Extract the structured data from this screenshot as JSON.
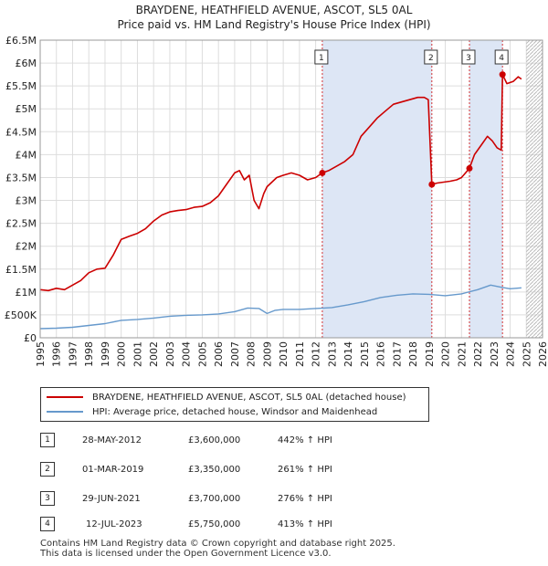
{
  "chart_data": {
    "type": "line",
    "title": "BRAYDENE, HEATHFIELD AVENUE, ASCOT, SL5 0AL",
    "subtitle": "Price paid vs. HM Land Registry's House Price Index (HPI)",
    "xlabel": "",
    "ylabel": "",
    "xlim": [
      1995,
      2026
    ],
    "ylim": [
      0,
      6500000
    ],
    "x_ticks": [
      "1995",
      "1996",
      "1997",
      "1998",
      "1999",
      "2000",
      "2001",
      "2002",
      "2003",
      "2004",
      "2005",
      "2006",
      "2007",
      "2008",
      "2009",
      "2010",
      "2011",
      "2012",
      "2013",
      "2014",
      "2015",
      "2016",
      "2017",
      "2018",
      "2019",
      "2020",
      "2021",
      "2022",
      "2023",
      "2024",
      "2025",
      "2026"
    ],
    "y_ticks": [
      {
        "value": 0,
        "label": "£0"
      },
      {
        "value": 500000,
        "label": "£500K"
      },
      {
        "value": 1000000,
        "label": "£1M"
      },
      {
        "value": 1500000,
        "label": "£1.5M"
      },
      {
        "value": 2000000,
        "label": "£2M"
      },
      {
        "value": 2500000,
        "label": "£2.5M"
      },
      {
        "value": 3000000,
        "label": "£3M"
      },
      {
        "value": 3500000,
        "label": "£3.5M"
      },
      {
        "value": 4000000,
        "label": "£4M"
      },
      {
        "value": 4500000,
        "label": "£4.5M"
      },
      {
        "value": 5000000,
        "label": "£5M"
      },
      {
        "value": 5500000,
        "label": "£5.5M"
      },
      {
        "value": 6000000,
        "label": "£6M"
      },
      {
        "value": 6500000,
        "label": "£6.5M"
      }
    ],
    "grid": true,
    "future_hatch_from": 2025.0,
    "shaded_spans": [
      [
        2012.41,
        2019.17
      ],
      [
        2021.49,
        2023.53
      ]
    ],
    "series": [
      {
        "name": "BRAYDENE, HEATHFIELD AVENUE, ASCOT, SL5 0AL (detached house)",
        "color": "#cc0000",
        "x": [
          1995.0,
          1995.5,
          1996.0,
          1996.5,
          1997.0,
          1997.5,
          1998.0,
          1998.5,
          1999.0,
          1999.5,
          2000.0,
          2000.5,
          2001.0,
          2001.5,
          2002.0,
          2002.5,
          2003.0,
          2003.5,
          2004.0,
          2004.5,
          2005.0,
          2005.5,
          2006.0,
          2006.5,
          2007.0,
          2007.3,
          2007.6,
          2007.9,
          2008.2,
          2008.5,
          2008.8,
          2009.0,
          2009.3,
          2009.6,
          2010.0,
          2010.5,
          2011.0,
          2011.5,
          2012.0,
          2012.41,
          2012.8,
          2013.3,
          2013.8,
          2014.3,
          2014.8,
          2015.3,
          2015.8,
          2016.3,
          2016.8,
          2017.3,
          2017.8,
          2018.3,
          2018.7,
          2018.95,
          2019.17,
          2019.5,
          2019.9,
          2020.3,
          2020.7,
          2021.0,
          2021.49,
          2021.8,
          2022.2,
          2022.6,
          2022.9,
          2023.2,
          2023.45,
          2023.53,
          2023.8,
          2024.2,
          2024.5,
          2024.7
        ],
        "values": [
          1050000,
          1030000,
          1080000,
          1050000,
          1150000,
          1250000,
          1420000,
          1500000,
          1520000,
          1800000,
          2150000,
          2220000,
          2280000,
          2380000,
          2550000,
          2680000,
          2750000,
          2780000,
          2800000,
          2850000,
          2870000,
          2950000,
          3100000,
          3350000,
          3600000,
          3650000,
          3450000,
          3550000,
          3000000,
          2820000,
          3150000,
          3300000,
          3400000,
          3500000,
          3550000,
          3600000,
          3550000,
          3450000,
          3500000,
          3600000,
          3650000,
          3750000,
          3850000,
          4000000,
          4400000,
          4600000,
          4800000,
          4950000,
          5100000,
          5150000,
          5200000,
          5250000,
          5250000,
          5200000,
          3350000,
          3380000,
          3400000,
          3420000,
          3450000,
          3500000,
          3700000,
          4000000,
          4200000,
          4400000,
          4300000,
          4150000,
          4100000,
          5750000,
          5550000,
          5600000,
          5700000,
          5650000
        ]
      },
      {
        "name": "HPI: Average price, detached house, Windsor and Maidenhead",
        "color": "#6699cc",
        "x": [
          1995.0,
          1996.0,
          1997.0,
          1998.0,
          1999.0,
          2000.0,
          2001.0,
          2002.0,
          2003.0,
          2004.0,
          2005.0,
          2006.0,
          2007.0,
          2007.8,
          2008.5,
          2009.0,
          2009.5,
          2010.0,
          2011.0,
          2012.0,
          2013.0,
          2014.0,
          2015.0,
          2016.0,
          2017.0,
          2018.0,
          2019.0,
          2020.0,
          2021.0,
          2022.0,
          2022.8,
          2023.5,
          2024.0,
          2024.7
        ],
        "values": [
          200000,
          210000,
          230000,
          270000,
          310000,
          380000,
          400000,
          430000,
          470000,
          490000,
          500000,
          520000,
          570000,
          650000,
          640000,
          530000,
          600000,
          620000,
          620000,
          640000,
          660000,
          720000,
          790000,
          880000,
          930000,
          960000,
          950000,
          920000,
          960000,
          1050000,
          1150000,
          1100000,
          1070000,
          1090000
        ]
      }
    ],
    "sales": [
      {
        "label": "1",
        "x": 2012.41,
        "value": 3600000
      },
      {
        "label": "2",
        "x": 2019.17,
        "value": 3350000
      },
      {
        "label": "3",
        "x": 2021.49,
        "value": 3700000
      },
      {
        "label": "4",
        "x": 2023.53,
        "value": 5750000
      }
    ]
  },
  "colors": {
    "property": "#cc0000",
    "hpi": "#6699cc",
    "shade": "#dde6f5",
    "grid": "#dddddd"
  },
  "legend": {
    "property": "BRAYDENE, HEATHFIELD AVENUE, ASCOT, SL5 0AL (detached house)",
    "hpi": "HPI: Average price, detached house, Windsor and Maidenhead"
  },
  "sales_table": [
    {
      "num": "1",
      "date": "28-MAY-2012",
      "price": "£3,600,000",
      "hpi": "442% ↑ HPI"
    },
    {
      "num": "2",
      "date": "01-MAR-2019",
      "price": "£3,350,000",
      "hpi": "261% ↑ HPI"
    },
    {
      "num": "3",
      "date": "29-JUN-2021",
      "price": "£3,700,000",
      "hpi": "276% ↑ HPI"
    },
    {
      "num": "4",
      "date": "12-JUL-2023",
      "price": "£5,750,000",
      "hpi": "413% ↑ HPI"
    }
  ],
  "footer": {
    "line1": "Contains HM Land Registry data © Crown copyright and database right 2025.",
    "line2": "This data is licensed under the Open Government Licence v3.0."
  }
}
